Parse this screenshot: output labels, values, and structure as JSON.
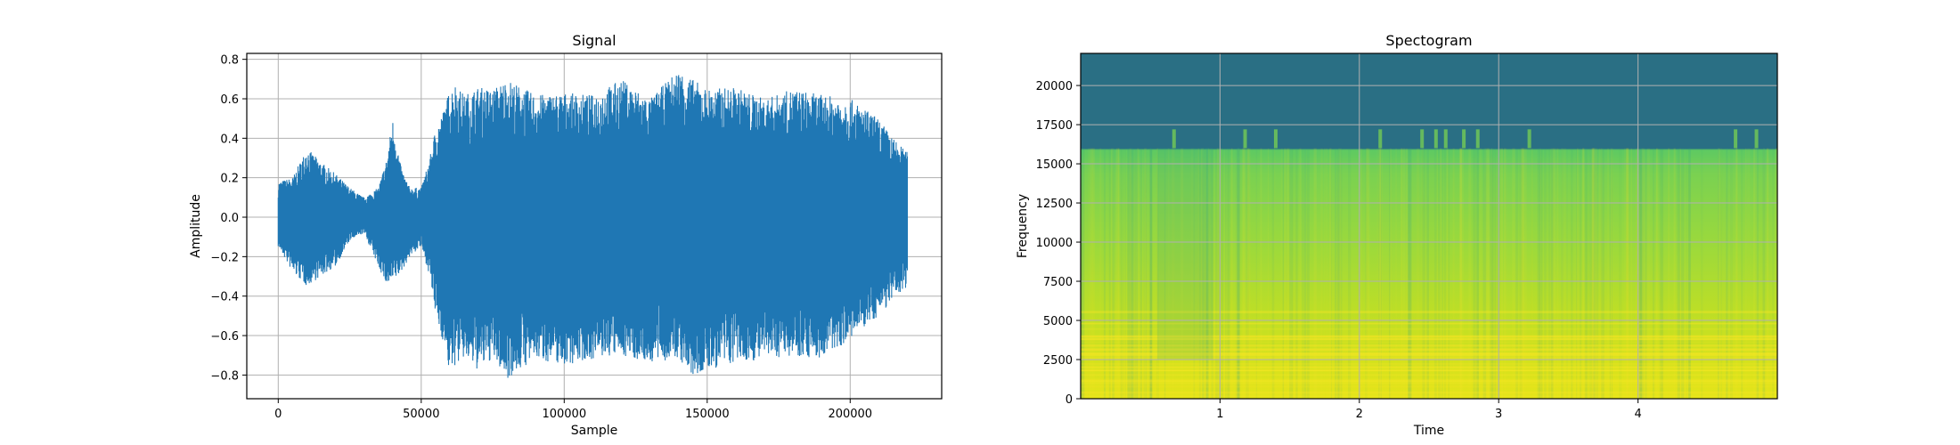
{
  "chart_data": [
    {
      "type": "line",
      "title": "Signal",
      "xlabel": "Sample",
      "ylabel": "Amplitude",
      "xlim": [
        -11000,
        232000
      ],
      "ylim": [
        -0.92,
        0.83
      ],
      "grid": true,
      "color": "#1f77b4",
      "x_ticks": [
        0,
        50000,
        100000,
        150000,
        200000
      ],
      "x_tick_labels": [
        "0",
        "50000",
        "100000",
        "150000",
        "200000"
      ],
      "y_ticks": [
        -0.8,
        -0.6,
        -0.4,
        -0.2,
        0.0,
        0.2,
        0.4,
        0.6,
        0.8
      ],
      "y_tick_labels": [
        "−0.8",
        "−0.6",
        "−0.4",
        "−0.2",
        "0.0",
        "0.2",
        "0.4",
        "0.6",
        "0.8"
      ],
      "series": [
        {
          "envelope_x": [
            0,
            5000,
            10000,
            15000,
            20000,
            25000,
            30000,
            35000,
            38000,
            40000,
            43000,
            46000,
            50000,
            53000,
            55000,
            58000,
            60000,
            62000,
            65000,
            70000,
            75000,
            80000,
            90000,
            100000,
            110000,
            120000,
            130000,
            140000,
            145000,
            150000,
            160000,
            170000,
            180000,
            190000,
            200000,
            210000,
            215000,
            220000
          ],
          "envelope_max": [
            0.18,
            0.2,
            0.35,
            0.28,
            0.22,
            0.15,
            0.1,
            0.15,
            0.3,
            0.5,
            0.25,
            0.15,
            0.15,
            0.3,
            0.45,
            0.55,
            0.65,
            0.68,
            0.62,
            0.66,
            0.65,
            0.7,
            0.62,
            0.63,
            0.62,
            0.7,
            0.6,
            0.75,
            0.7,
            0.65,
            0.66,
            0.6,
            0.65,
            0.62,
            0.6,
            0.5,
            0.4,
            0.33
          ],
          "envelope_min": [
            -0.15,
            -0.28,
            -0.35,
            -0.3,
            -0.25,
            -0.12,
            -0.08,
            -0.25,
            -0.35,
            -0.33,
            -0.28,
            -0.2,
            -0.15,
            -0.3,
            -0.5,
            -0.65,
            -0.8,
            -0.75,
            -0.72,
            -0.78,
            -0.72,
            -0.82,
            -0.72,
            -0.75,
            -0.72,
            -0.7,
            -0.74,
            -0.72,
            -0.82,
            -0.78,
            -0.74,
            -0.72,
            -0.7,
            -0.72,
            -0.62,
            -0.5,
            -0.42,
            -0.35
          ]
        }
      ]
    },
    {
      "type": "heatmap",
      "title": "Spectogram",
      "xlabel": "Time",
      "ylabel": "Frequency",
      "xlim": [
        0,
        5
      ],
      "ylim": [
        0,
        22050
      ],
      "grid": true,
      "colormap": "viridis",
      "x_ticks": [
        1,
        2,
        3,
        4
      ],
      "x_tick_labels": [
        "1",
        "2",
        "3",
        "4"
      ],
      "y_ticks": [
        0,
        2500,
        5000,
        7500,
        10000,
        12500,
        15000,
        17500,
        20000
      ],
      "y_tick_labels": [
        "0",
        "2500",
        "5000",
        "7500",
        "10000",
        "12500",
        "15000",
        "17500",
        "20000"
      ],
      "cutoff_frequency": 16000,
      "above_cutoff_color": "#2a6f84",
      "low_band_color": "#d4e21a",
      "mid_band_color": "#7ad151"
    }
  ]
}
